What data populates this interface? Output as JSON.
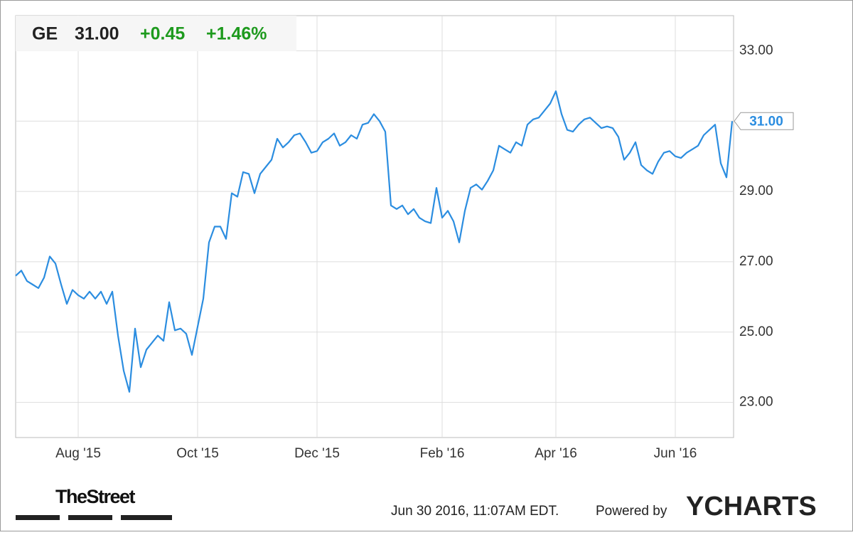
{
  "chart_data": {
    "type": "line",
    "ticker": "GE",
    "price": "31.00",
    "change": "+0.45",
    "change_percent": "+1.46%",
    "timestamp": "Jun 30 2016, 11:07AM EDT.",
    "credit": "Powered by",
    "brand": "YCHARTS",
    "source_logo": "TheStreet",
    "categories": [
      null,
      null,
      null,
      null,
      null,
      null,
      null,
      null,
      null,
      null,
      null,
      "Aug '15",
      null,
      null,
      null,
      null,
      null,
      null,
      null,
      null,
      null,
      null,
      null,
      null,
      null,
      null,
      null,
      null,
      null,
      null,
      null,
      null,
      "Oct '15",
      null,
      null,
      null,
      null,
      null,
      null,
      null,
      null,
      null,
      null,
      null,
      null,
      null,
      null,
      null,
      null,
      null,
      null,
      null,
      null,
      "Dec '15",
      null,
      null,
      null,
      null,
      null,
      null,
      null,
      null,
      null,
      null,
      null,
      null,
      null,
      null,
      null,
      null,
      null,
      null,
      null,
      null,
      null,
      "Feb '16",
      null,
      null,
      null,
      null,
      null,
      null,
      null,
      null,
      null,
      null,
      null,
      null,
      null,
      null,
      null,
      null,
      null,
      null,
      null,
      "Apr '16",
      null,
      null,
      null,
      null,
      null,
      null,
      null,
      null,
      null,
      null,
      null,
      null,
      null,
      null,
      null,
      null,
      null,
      null,
      null,
      null,
      "Jun '16",
      null,
      null,
      null,
      null,
      null,
      null,
      null,
      null,
      null,
      null
    ],
    "series": [
      {
        "name": "GE",
        "color": "#2b8de0",
        "values": [
          26.6,
          26.75,
          26.45,
          26.35,
          26.25,
          26.55,
          27.15,
          26.95,
          26.35,
          25.8,
          26.2,
          26.05,
          25.95,
          26.15,
          25.95,
          26.15,
          25.8,
          26.15,
          24.9,
          23.9,
          23.3,
          25.1,
          24.0,
          24.5,
          24.7,
          24.9,
          24.75,
          25.85,
          25.05,
          25.1,
          24.95,
          24.35,
          25.15,
          25.95,
          27.55,
          28.0,
          28.0,
          27.65,
          28.95,
          28.85,
          29.55,
          29.5,
          28.95,
          29.5,
          29.7,
          29.9,
          30.5,
          30.25,
          30.4,
          30.6,
          30.65,
          30.4,
          30.1,
          30.15,
          30.4,
          30.5,
          30.65,
          30.3,
          30.4,
          30.6,
          30.5,
          30.9,
          30.95,
          31.2,
          31.0,
          30.7,
          28.6,
          28.5,
          28.6,
          28.35,
          28.5,
          28.25,
          28.15,
          28.1,
          29.1,
          28.25,
          28.45,
          28.15,
          27.55,
          28.45,
          29.1,
          29.2,
          29.05,
          29.3,
          29.6,
          30.3,
          30.2,
          30.1,
          30.4,
          30.3,
          30.9,
          31.05,
          31.1,
          31.3,
          31.5,
          31.85,
          31.2,
          30.75,
          30.7,
          30.9,
          31.05,
          31.1,
          30.95,
          30.8,
          30.85,
          30.8,
          30.55,
          29.9,
          30.1,
          30.4,
          29.75,
          29.6,
          29.5,
          29.85,
          30.1,
          30.15,
          30.0,
          29.95,
          30.1,
          30.2,
          30.3,
          30.6,
          30.75,
          30.9,
          29.8,
          29.4,
          31.0
        ]
      }
    ],
    "ylim": [
      22,
      34
    ],
    "yticks": [
      {
        "value": 23,
        "label": "23.00"
      },
      {
        "value": 25,
        "label": "25.00"
      },
      {
        "value": 27,
        "label": "27.00"
      },
      {
        "value": 29,
        "label": "29.00"
      },
      {
        "value": 31,
        "label": "31.00"
      },
      {
        "value": 33,
        "label": "33.00"
      }
    ],
    "grid": true
  }
}
